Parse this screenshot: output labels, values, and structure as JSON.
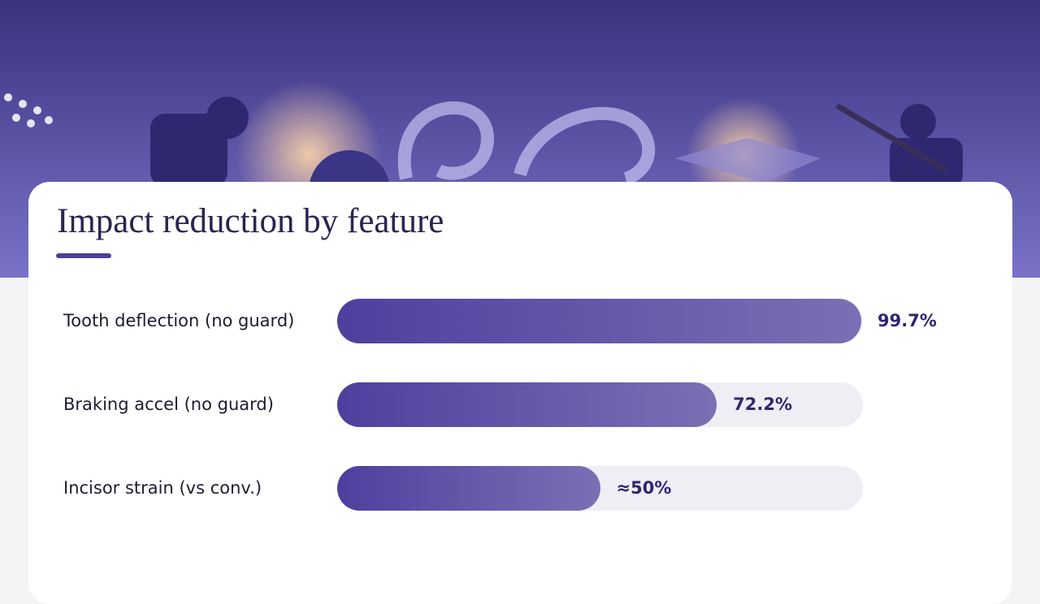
{
  "chart_data": {
    "type": "bar",
    "orientation": "horizontal",
    "title": "Impact reduction by feature",
    "categories": [
      "Tooth deflection (no guard)",
      "Braking accel (no guard)",
      "Incisor strain (vs conv.)"
    ],
    "values": [
      99.7,
      72.2,
      50
    ],
    "value_labels": [
      "99.7%",
      "72.2%",
      "≈50%"
    ],
    "xlim": [
      0,
      100
    ],
    "color": "#4f3f9e"
  }
}
